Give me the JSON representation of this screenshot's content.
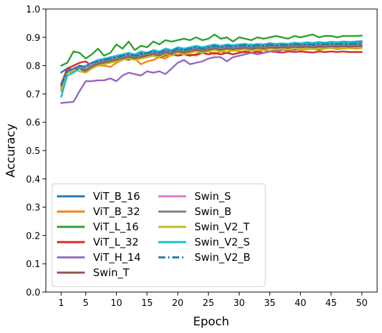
{
  "chart_data": {
    "type": "line",
    "title": "",
    "xlabel": "Epoch",
    "ylabel": "Accuracy",
    "xlim": [
      -1.5,
      52.5
    ],
    "ylim": [
      0.0,
      1.0
    ],
    "xticks": [
      1,
      5,
      10,
      15,
      20,
      25,
      30,
      35,
      40,
      45,
      50
    ],
    "yticks": [
      0.0,
      0.1,
      0.2,
      0.3,
      0.4,
      0.5,
      0.6,
      0.7,
      0.8,
      0.9,
      1.0
    ],
    "grid": false,
    "legend": {
      "placement": "lower-left",
      "columns": 2
    },
    "x": [
      1,
      2,
      3,
      4,
      5,
      6,
      7,
      8,
      9,
      10,
      11,
      12,
      13,
      14,
      15,
      16,
      17,
      18,
      19,
      20,
      21,
      22,
      23,
      24,
      25,
      26,
      27,
      28,
      29,
      30,
      31,
      32,
      33,
      34,
      35,
      36,
      37,
      38,
      39,
      40,
      41,
      42,
      43,
      44,
      45,
      46,
      47,
      48,
      49,
      50
    ],
    "series": [
      {
        "name": "ViT_B_16",
        "color": "#1f77b4",
        "dash": "solid",
        "values": [
          0.776,
          0.79,
          0.785,
          0.8,
          0.79,
          0.805,
          0.82,
          0.81,
          0.825,
          0.83,
          0.835,
          0.84,
          0.83,
          0.845,
          0.84,
          0.85,
          0.845,
          0.855,
          0.85,
          0.86,
          0.85,
          0.86,
          0.855,
          0.86,
          0.865,
          0.86,
          0.87,
          0.865,
          0.87,
          0.87,
          0.865,
          0.875,
          0.87,
          0.875,
          0.88,
          0.875,
          0.878,
          0.876,
          0.88,
          0.878,
          0.882,
          0.88,
          0.883,
          0.881,
          0.884,
          0.882,
          0.885,
          0.883,
          0.885,
          0.886
        ]
      },
      {
        "name": "ViT_B_32",
        "color": "#ff7f0e",
        "dash": "solid",
        "values": [
          0.71,
          0.775,
          0.78,
          0.79,
          0.775,
          0.795,
          0.8,
          0.8,
          0.795,
          0.81,
          0.82,
          0.83,
          0.825,
          0.805,
          0.815,
          0.82,
          0.83,
          0.825,
          0.84,
          0.835,
          0.845,
          0.84,
          0.835,
          0.845,
          0.85,
          0.84,
          0.85,
          0.845,
          0.855,
          0.85,
          0.845,
          0.855,
          0.85,
          0.855,
          0.85,
          0.855,
          0.858,
          0.852,
          0.86,
          0.856,
          0.858,
          0.86,
          0.855,
          0.86,
          0.862,
          0.858,
          0.86,
          0.862,
          0.86,
          0.862
        ]
      },
      {
        "name": "ViT_L_16",
        "color": "#2ca02c",
        "dash": "solid",
        "values": [
          0.8,
          0.81,
          0.85,
          0.845,
          0.825,
          0.84,
          0.86,
          0.835,
          0.845,
          0.875,
          0.86,
          0.885,
          0.855,
          0.87,
          0.865,
          0.885,
          0.875,
          0.89,
          0.885,
          0.89,
          0.895,
          0.89,
          0.9,
          0.89,
          0.895,
          0.91,
          0.895,
          0.9,
          0.885,
          0.9,
          0.895,
          0.89,
          0.9,
          0.895,
          0.9,
          0.905,
          0.9,
          0.895,
          0.905,
          0.9,
          0.905,
          0.91,
          0.9,
          0.905,
          0.905,
          0.9,
          0.905,
          0.905,
          0.905,
          0.906
        ]
      },
      {
        "name": "ViT_L_32",
        "color": "#d62728",
        "dash": "solid",
        "values": [
          0.735,
          0.79,
          0.8,
          0.81,
          0.815,
          0.8,
          0.805,
          0.81,
          0.815,
          0.82,
          0.825,
          0.82,
          0.83,
          0.825,
          0.83,
          0.835,
          0.83,
          0.835,
          0.84,
          0.835,
          0.84,
          0.835,
          0.84,
          0.845,
          0.84,
          0.845,
          0.84,
          0.845,
          0.84,
          0.845,
          0.85,
          0.845,
          0.848,
          0.845,
          0.85,
          0.848,
          0.846,
          0.85,
          0.848,
          0.85,
          0.848,
          0.846,
          0.85,
          0.848,
          0.85,
          0.848,
          0.85,
          0.848,
          0.848,
          0.848
        ]
      },
      {
        "name": "ViT_H_14",
        "color": "#9467bd",
        "dash": "solid",
        "values": [
          0.668,
          0.67,
          0.672,
          0.71,
          0.745,
          0.745,
          0.748,
          0.748,
          0.755,
          0.745,
          0.765,
          0.775,
          0.77,
          0.765,
          0.78,
          0.775,
          0.78,
          0.77,
          0.79,
          0.81,
          0.82,
          0.805,
          0.81,
          0.815,
          0.825,
          0.83,
          0.83,
          0.815,
          0.83,
          0.835,
          0.84,
          0.845,
          0.84,
          0.845,
          0.85,
          0.85,
          0.855,
          0.86,
          0.855,
          0.86,
          0.86,
          0.865,
          0.86,
          0.865,
          0.868,
          0.865,
          0.868,
          0.87,
          0.868,
          0.87
        ]
      },
      {
        "name": "Swin_T",
        "color": "#8c564b",
        "dash": "solid",
        "values": [
          0.72,
          0.775,
          0.785,
          0.79,
          0.78,
          0.795,
          0.805,
          0.81,
          0.815,
          0.82,
          0.825,
          0.83,
          0.825,
          0.83,
          0.835,
          0.84,
          0.835,
          0.845,
          0.84,
          0.85,
          0.845,
          0.85,
          0.855,
          0.85,
          0.855,
          0.86,
          0.855,
          0.86,
          0.858,
          0.86,
          0.862,
          0.858,
          0.862,
          0.86,
          0.864,
          0.862,
          0.864,
          0.862,
          0.866,
          0.864,
          0.866,
          0.864,
          0.866,
          0.866,
          0.868,
          0.866,
          0.868,
          0.866,
          0.868,
          0.868
        ]
      },
      {
        "name": "Swin_S",
        "color": "#e377c2",
        "dash": "solid",
        "values": [
          0.73,
          0.78,
          0.79,
          0.8,
          0.79,
          0.805,
          0.815,
          0.82,
          0.825,
          0.83,
          0.835,
          0.84,
          0.835,
          0.84,
          0.845,
          0.85,
          0.845,
          0.855,
          0.85,
          0.86,
          0.855,
          0.86,
          0.865,
          0.86,
          0.865,
          0.87,
          0.865,
          0.87,
          0.868,
          0.87,
          0.872,
          0.868,
          0.872,
          0.87,
          0.874,
          0.872,
          0.874,
          0.872,
          0.876,
          0.874,
          0.876,
          0.874,
          0.876,
          0.876,
          0.878,
          0.876,
          0.878,
          0.876,
          0.878,
          0.878
        ]
      },
      {
        "name": "Swin_B",
        "color": "#7f7f7f",
        "dash": "solid",
        "values": [
          0.72,
          0.78,
          0.79,
          0.795,
          0.785,
          0.8,
          0.81,
          0.815,
          0.82,
          0.825,
          0.83,
          0.835,
          0.83,
          0.835,
          0.84,
          0.845,
          0.84,
          0.85,
          0.845,
          0.855,
          0.85,
          0.855,
          0.86,
          0.855,
          0.86,
          0.865,
          0.86,
          0.865,
          0.862,
          0.865,
          0.867,
          0.863,
          0.867,
          0.865,
          0.869,
          0.867,
          0.869,
          0.867,
          0.871,
          0.869,
          0.871,
          0.869,
          0.871,
          0.871,
          0.873,
          0.871,
          0.873,
          0.871,
          0.873,
          0.873
        ]
      },
      {
        "name": "Swin_V2_T",
        "color": "#bcbd22",
        "dash": "solid",
        "values": [
          0.715,
          0.775,
          0.785,
          0.78,
          0.775,
          0.79,
          0.8,
          0.805,
          0.81,
          0.815,
          0.82,
          0.825,
          0.82,
          0.825,
          0.83,
          0.835,
          0.83,
          0.84,
          0.835,
          0.845,
          0.84,
          0.845,
          0.85,
          0.845,
          0.85,
          0.855,
          0.85,
          0.855,
          0.852,
          0.855,
          0.857,
          0.853,
          0.857,
          0.855,
          0.859,
          0.857,
          0.859,
          0.857,
          0.861,
          0.859,
          0.861,
          0.859,
          0.861,
          0.861,
          0.863,
          0.861,
          0.863,
          0.861,
          0.863,
          0.863
        ]
      },
      {
        "name": "Swin_V2_S",
        "color": "#17becf",
        "dash": "solid",
        "values": [
          0.69,
          0.765,
          0.775,
          0.79,
          0.8,
          0.81,
          0.82,
          0.825,
          0.83,
          0.835,
          0.84,
          0.845,
          0.84,
          0.85,
          0.845,
          0.855,
          0.85,
          0.86,
          0.855,
          0.865,
          0.86,
          0.865,
          0.87,
          0.865,
          0.87,
          0.875,
          0.87,
          0.875,
          0.872,
          0.875,
          0.877,
          0.873,
          0.877,
          0.875,
          0.879,
          0.877,
          0.879,
          0.877,
          0.881,
          0.879,
          0.881,
          0.879,
          0.881,
          0.881,
          0.883,
          0.881,
          0.883,
          0.881,
          0.883,
          0.883
        ]
      },
      {
        "name": "Swin_V2_B",
        "color": "#1f77b4",
        "dash": "dashdot",
        "values": [
          0.73,
          0.78,
          0.79,
          0.8,
          0.795,
          0.81,
          0.815,
          0.82,
          0.825,
          0.83,
          0.835,
          0.84,
          0.835,
          0.84,
          0.845,
          0.85,
          0.845,
          0.855,
          0.85,
          0.86,
          0.855,
          0.86,
          0.865,
          0.86,
          0.865,
          0.87,
          0.865,
          0.87,
          0.868,
          0.87,
          0.872,
          0.868,
          0.872,
          0.87,
          0.874,
          0.872,
          0.874,
          0.872,
          0.876,
          0.874,
          0.876,
          0.874,
          0.876,
          0.876,
          0.878,
          0.876,
          0.878,
          0.876,
          0.878,
          0.878
        ]
      }
    ]
  }
}
